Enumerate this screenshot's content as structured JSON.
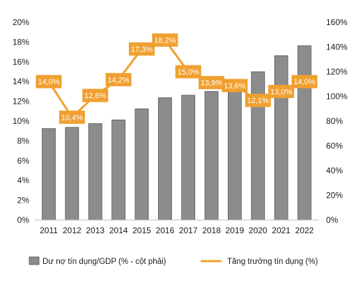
{
  "chart_data": {
    "type": "bar+line",
    "categories": [
      "2011",
      "2012",
      "2013",
      "2014",
      "2015",
      "2016",
      "2017",
      "2018",
      "2019",
      "2020",
      "2021",
      "2022"
    ],
    "series": [
      {
        "name": "Dư nợ tín dụng/GDP (% - cột phải)",
        "type": "bar",
        "axis": "right",
        "color": "#8c8c8c",
        "values": [
          74,
          75,
          78,
          81,
          90,
          99,
          101,
          104,
          106,
          120,
          133,
          141
        ]
      },
      {
        "name": "Tăng trưởng tín dụng (%)",
        "type": "line",
        "axis": "left",
        "color": "#f0a030",
        "values": [
          14.0,
          10.4,
          12.6,
          14.2,
          17.3,
          18.2,
          15.0,
          13.9,
          13.6,
          12.1,
          13.0,
          14.0
        ],
        "labels": [
          "14,0%",
          "10,4%",
          "12,6%",
          "14,2%",
          "17,3%",
          "18,2%",
          "15,0%",
          "13,9%",
          "13,6%",
          "12,1%",
          "13,0%",
          "14,0%"
        ]
      }
    ],
    "y_left": {
      "ylim": [
        0,
        20
      ],
      "ticks": [
        0,
        2,
        4,
        6,
        8,
        10,
        12,
        14,
        16,
        18,
        20
      ],
      "tick_labels": [
        "0%",
        "2%",
        "4%",
        "6%",
        "8%",
        "10%",
        "12%",
        "14%",
        "16%",
        "18%",
        "20%"
      ]
    },
    "y_right": {
      "ylim": [
        0,
        160
      ],
      "ticks": [
        0,
        20,
        40,
        60,
        80,
        100,
        120,
        140,
        160
      ],
      "tick_labels": [
        "0%",
        "20%",
        "40%",
        "60%",
        "80%",
        "100%",
        "120%",
        "140%",
        "160%"
      ]
    },
    "grid": false,
    "legend_position": "bottom"
  }
}
